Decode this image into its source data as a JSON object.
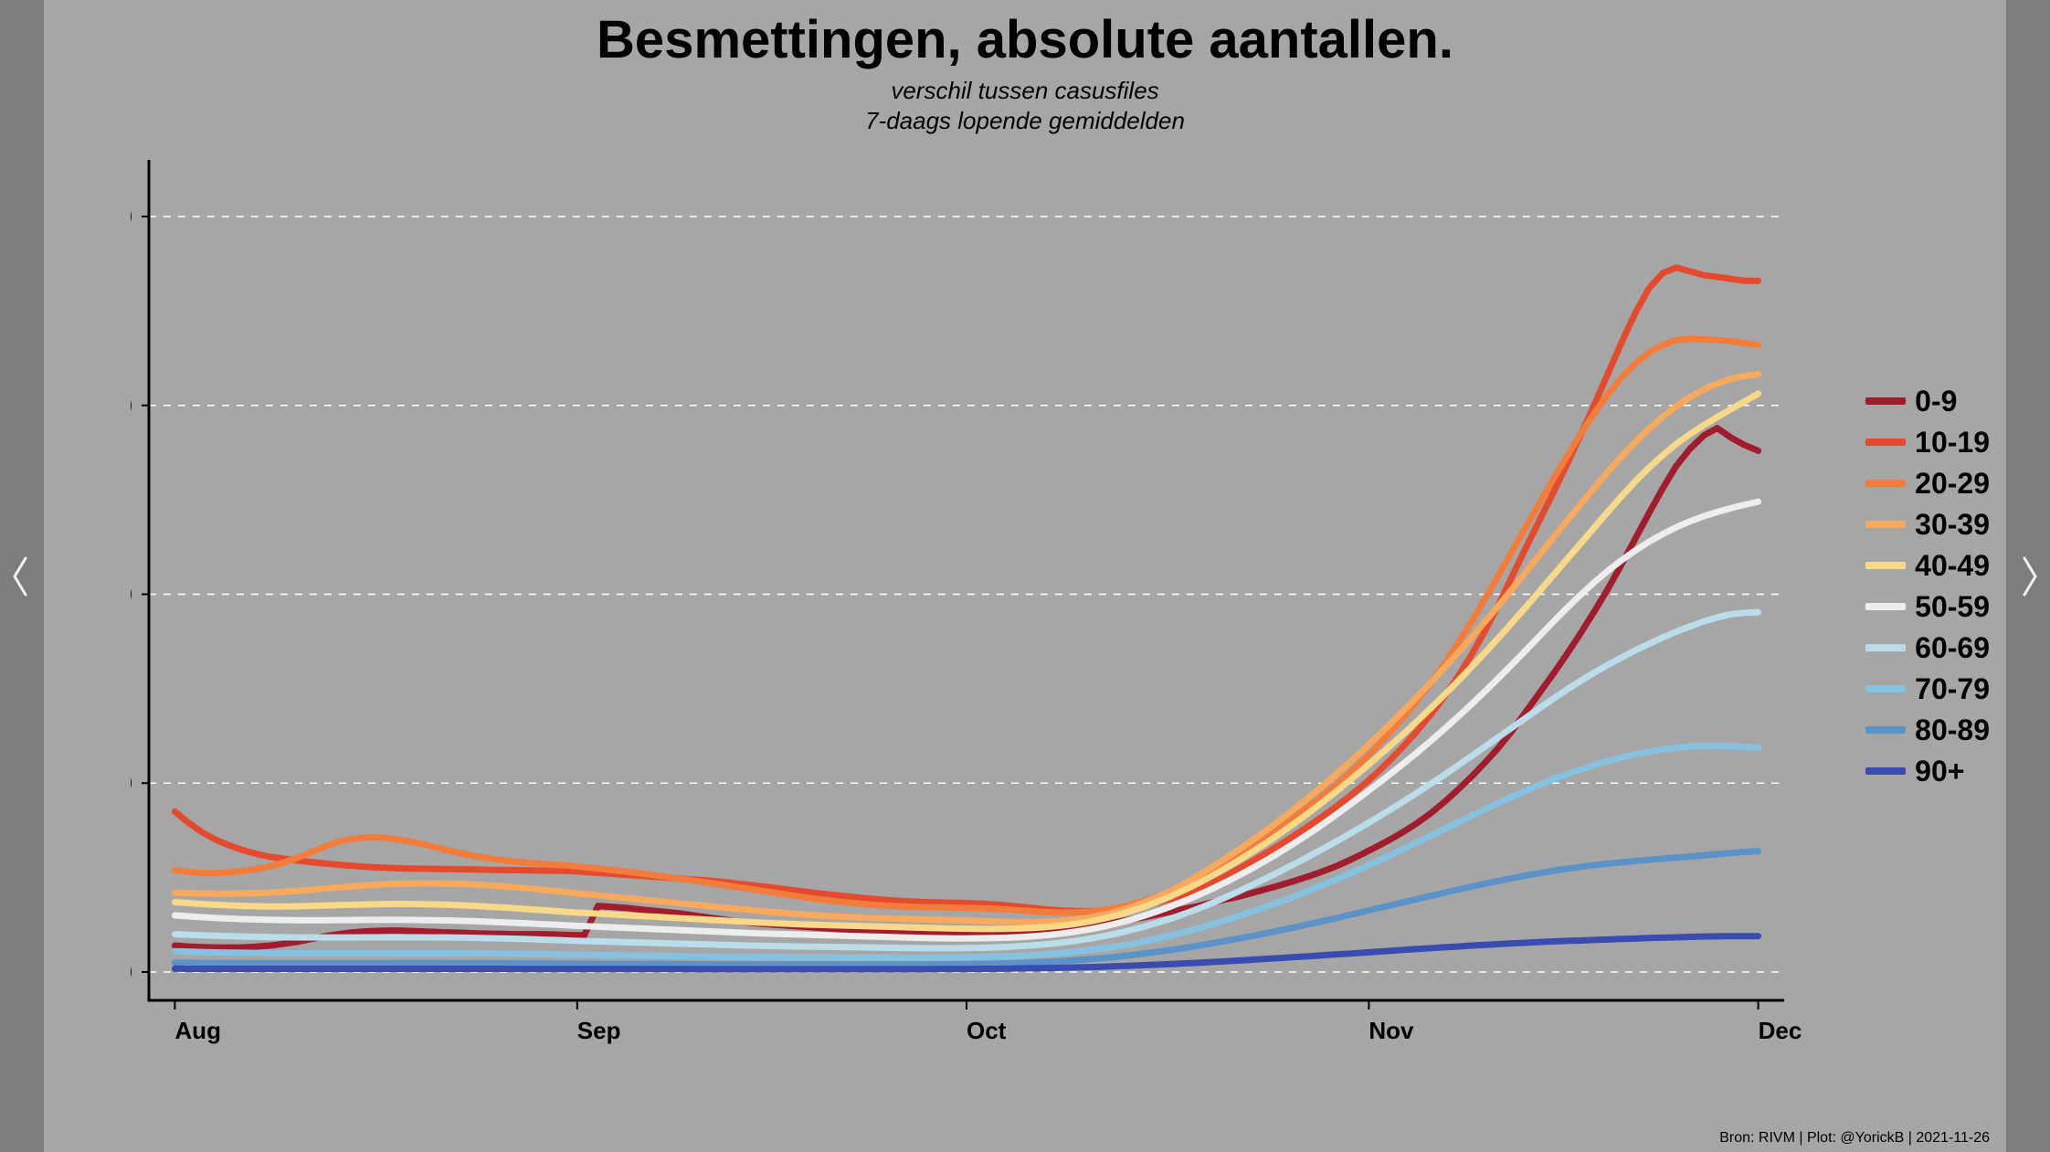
{
  "frame": {
    "outer_bg": "#999999",
    "sidebar_bg": "#7d7d7d",
    "panel_bg": "#a6a6a6",
    "nav_arrow_color": "#f2f2f2"
  },
  "title": "Besmettingen, absolute aantallen.",
  "subtitle_line1": "verschil tussen casusfiles",
  "subtitle_line2": "7-daags lopende gemiddelden",
  "title_fontsize": 58,
  "subtitle_fontsize": 26,
  "credit": "Bron: RIVM | Plot: @YorickB  |  2021-11-26",
  "credit_fontsize": 16,
  "chart": {
    "type": "line",
    "background_color": "#a6a6a6",
    "grid_color": "#ffffff",
    "grid_dash": "8 8",
    "axis_color": "#000000",
    "axis_width": 3,
    "line_width": 7,
    "axis_label_fontsize": 26,
    "axis_label_fontweight": 700,
    "x_ticks": [
      {
        "pos": 0,
        "label": "Aug"
      },
      {
        "pos": 31,
        "label": "Sep"
      },
      {
        "pos": 61,
        "label": "Oct"
      },
      {
        "pos": 92,
        "label": "Nov"
      },
      {
        "pos": 122,
        "label": "Dec"
      }
    ],
    "xlim": [
      -2,
      124
    ],
    "y_ticks": [
      0,
      1000,
      2000,
      3000,
      4000
    ],
    "ylim": [
      -150,
      4300
    ],
    "legend_fontsize": 32,
    "legend_fontweight": 700,
    "series": [
      {
        "label": "0-9",
        "color": "#a11d2e",
        "values": [
          140,
          135,
          132,
          130,
          130,
          130,
          135,
          140,
          150,
          160,
          175,
          190,
          200,
          210,
          215,
          218,
          220,
          218,
          215,
          212,
          210,
          208,
          205,
          203,
          202,
          200,
          200,
          200,
          198,
          196,
          195,
          350,
          345,
          340,
          332,
          325,
          318,
          310,
          300,
          290,
          280,
          270,
          262,
          255,
          250,
          245,
          240,
          235,
          230,
          225,
          222,
          220,
          218,
          216,
          214,
          212,
          210,
          208,
          205,
          203,
          200,
          200,
          205,
          210,
          218,
          226,
          235,
          245,
          255,
          265,
          278,
          290,
          305,
          320,
          335,
          350,
          368,
          385,
          400,
          420,
          440,
          460,
          482,
          505,
          530,
          558,
          590,
          625,
          662,
          700,
          742,
          788,
          840,
          900,
          965,
          1035,
          1110,
          1190,
          1280,
          1380,
          1480,
          1580,
          1685,
          1795,
          1910,
          2030,
          2160,
          2295,
          2430,
          2560,
          2680,
          2770,
          2840,
          2880,
          2830,
          2790,
          2760
        ]
      },
      {
        "label": "10-19",
        "color": "#e44a2d",
        "values": [
          850,
          790,
          740,
          700,
          670,
          645,
          625,
          610,
          600,
          590,
          582,
          575,
          568,
          562,
          557,
          553,
          550,
          548,
          547,
          546,
          545,
          544,
          543,
          541,
          540,
          539,
          538,
          537,
          536,
          535,
          530,
          525,
          520,
          515,
          510,
          505,
          500,
          495,
          490,
          485,
          478,
          470,
          462,
          454,
          445,
          436,
          427,
          418,
          410,
          402,
          395,
          388,
          382,
          377,
          373,
          370,
          368,
          367,
          365,
          362,
          358,
          352,
          345,
          338,
          330,
          325,
          322,
          322,
          326,
          332,
          340,
          352,
          368,
          388,
          412,
          440,
          472,
          508,
          548,
          590,
          632,
          676,
          722,
          770,
          820,
          872,
          927,
          986,
          1050,
          1120,
          1195,
          1275,
          1362,
          1458,
          1564,
          1680,
          1808,
          1948,
          2100,
          2250,
          2395,
          2540,
          2690,
          2845,
          3005,
          3170,
          3335,
          3490,
          3620,
          3700,
          3730,
          3710,
          3690,
          3680,
          3670,
          3660,
          3660
        ]
      },
      {
        "label": "20-29",
        "color": "#f27c3b",
        "values": [
          540,
          530,
          525,
          525,
          528,
          535,
          545,
          560,
          580,
          605,
          635,
          665,
          690,
          705,
          712,
          712,
          706,
          695,
          680,
          662,
          644,
          628,
          614,
          602,
          592,
          584,
          578,
          572,
          567,
          562,
          555,
          548,
          540,
          532,
          523,
          514,
          504,
          494,
          484,
          474,
          463,
          452,
          441,
          430,
          419,
          408,
          397,
          387,
          378,
          370,
          363,
          357,
          352,
          348,
          345,
          343,
          342,
          341,
          340,
          338,
          335,
          331,
          326,
          321,
          317,
          315,
          316,
          320,
          328,
          340,
          356,
          376,
          400,
          428,
          460,
          496,
          536,
          578,
          622,
          668,
          716,
          766,
          818,
          872,
          928,
          987,
          1050,
          1117,
          1189,
          1266,
          1348,
          1436,
          1530,
          1631,
          1740,
          1856,
          1978,
          2104,
          2232,
          2360,
          2486,
          2610,
          2732,
          2850,
          2960,
          3060,
          3148,
          3222,
          3280,
          3320,
          3345,
          3352,
          3350,
          3345,
          3340,
          3330,
          3320
        ]
      },
      {
        "label": "30-39",
        "color": "#f7a95e",
        "values": [
          420,
          418,
          416,
          415,
          415,
          416,
          418,
          421,
          425,
          430,
          436,
          442,
          448,
          454,
          459,
          463,
          466,
          468,
          469,
          469,
          468,
          466,
          463,
          459,
          454,
          448,
          442,
          435,
          428,
          420,
          413,
          406,
          399,
          392,
          385,
          378,
          371,
          364,
          357,
          350,
          343,
          336,
          329,
          322,
          316,
          310,
          305,
          300,
          296,
          292,
          289,
          286,
          284,
          282,
          280,
          278,
          276,
          274,
          272,
          270,
          268,
          266,
          265,
          265,
          267,
          271,
          278,
          288,
          302,
          320,
          342,
          368,
          398,
          432,
          470,
          512,
          556,
          602,
          650,
          700,
          752,
          806,
          862,
          920,
          980,
          1042,
          1106,
          1172,
          1240,
          1310,
          1382,
          1456,
          1532,
          1610,
          1690,
          1772,
          1856,
          1942,
          2030,
          2120,
          2210,
          2300,
          2390,
          2478,
          2564,
          2648,
          2730,
          2806,
          2876,
          2940,
          2996,
          3044,
          3084,
          3116,
          3140,
          3156,
          3165
        ]
      },
      {
        "label": "40-49",
        "color": "#f8d889",
        "values": [
          370,
          365,
          360,
          356,
          353,
          350,
          348,
          347,
          347,
          348,
          350,
          352,
          354,
          356,
          358,
          359,
          360,
          360,
          359,
          358,
          356,
          353,
          350,
          346,
          342,
          337,
          332,
          327,
          322,
          317,
          313,
          309,
          305,
          301,
          297,
          293,
          289,
          285,
          281,
          277,
          273,
          269,
          265,
          261,
          258,
          255,
          252,
          250,
          248,
          246,
          244,
          242,
          240,
          238,
          236,
          234,
          232,
          230,
          229,
          228,
          228,
          229,
          231,
          234,
          239,
          246,
          255,
          267,
          282,
          300,
          321,
          345,
          372,
          402,
          435,
          471,
          510,
          551,
          594,
          639,
          686,
          735,
          786,
          839,
          894,
          951,
          1010,
          1070,
          1132,
          1195,
          1260,
          1327,
          1396,
          1467,
          1540,
          1615,
          1692,
          1771,
          1852,
          1934,
          2018,
          2102,
          2186,
          2270,
          2354,
          2438,
          2520,
          2598,
          2670,
          2736,
          2796,
          2848,
          2895,
          2938,
          2980,
          3021,
          3062
        ]
      },
      {
        "label": "50-59",
        "color": "#ededed",
        "values": [
          300,
          295,
          290,
          286,
          283,
          280,
          278,
          276,
          275,
          274,
          274,
          274,
          275,
          275,
          276,
          276,
          276,
          276,
          275,
          274,
          273,
          271,
          269,
          266,
          263,
          260,
          257,
          253,
          250,
          246,
          243,
          240,
          237,
          234,
          231,
          228,
          225,
          222,
          219,
          216,
          213,
          210,
          207,
          204,
          202,
          200,
          198,
          196,
          194,
          192,
          190,
          188,
          186,
          184,
          182,
          180,
          179,
          178,
          178,
          179,
          180,
          182,
          185,
          190,
          196,
          204,
          214,
          226,
          240,
          257,
          276,
          298,
          322,
          348,
          377,
          408,
          441,
          476,
          513,
          552,
          593,
          636,
          681,
          728,
          777,
          828,
          881,
          935,
          990,
          1046,
          1103,
          1162,
          1223,
          1286,
          1351,
          1418,
          1487,
          1558,
          1631,
          1705,
          1780,
          1855,
          1928,
          1998,
          2064,
          2125,
          2181,
          2232,
          2278,
          2319,
          2355,
          2386,
          2413,
          2436,
          2456,
          2474,
          2490
        ]
      },
      {
        "label": "60-69",
        "color": "#bbddea",
        "values": [
          200,
          197,
          194,
          192,
          190,
          188,
          186,
          185,
          184,
          183,
          183,
          183,
          183,
          183,
          184,
          184,
          184,
          184,
          184,
          183,
          183,
          182,
          181,
          179,
          178,
          176,
          174,
          171,
          169,
          166,
          164,
          162,
          160,
          158,
          156,
          154,
          152,
          150,
          148,
          146,
          144,
          142,
          140,
          139,
          137,
          136,
          135,
          134,
          133,
          132,
          131,
          130,
          129,
          128,
          127,
          126,
          126,
          126,
          127,
          128,
          130,
          133,
          137,
          142,
          148,
          156,
          165,
          176,
          189,
          204,
          221,
          240,
          261,
          284,
          309,
          336,
          365,
          396,
          429,
          463,
          498,
          534,
          571,
          609,
          648,
          688,
          729,
          771,
          814,
          858,
          903,
          949,
          996,
          1044,
          1093,
          1143,
          1194,
          1245,
          1296,
          1347,
          1398,
          1448,
          1496,
          1542,
          1586,
          1627,
          1666,
          1703,
          1738,
          1771,
          1802,
          1830,
          1856,
          1878,
          1894,
          1902,
          1905
        ]
      },
      {
        "label": "70-79",
        "color": "#86c2e0",
        "values": [
          110,
          108,
          106,
          104,
          103,
          102,
          101,
          100,
          99,
          99,
          99,
          99,
          99,
          99,
          99,
          100,
          100,
          100,
          100,
          100,
          99,
          99,
          98,
          98,
          97,
          96,
          95,
          94,
          93,
          92,
          91,
          90,
          89,
          88,
          87,
          86,
          85,
          84,
          83,
          82,
          81,
          80,
          80,
          79,
          79,
          78,
          78,
          78,
          78,
          77,
          77,
          77,
          77,
          76,
          76,
          76,
          76,
          77,
          78,
          79,
          81,
          83,
          86,
          90,
          95,
          101,
          108,
          116,
          125,
          136,
          148,
          162,
          177,
          194,
          212,
          232,
          253,
          275,
          298,
          322,
          347,
          373,
          400,
          428,
          457,
          487,
          518,
          550,
          583,
          617,
          652,
          687,
          722,
          757,
          792,
          827,
          862,
          896,
          929,
          961,
          992,
          1021,
          1048,
          1073,
          1096,
          1117,
          1136,
          1153,
          1167,
          1179,
          1188,
          1194,
          1197,
          1197,
          1195,
          1192,
          1190
        ]
      },
      {
        "label": "80-89",
        "color": "#5b92c8",
        "values": [
          50,
          49,
          48,
          48,
          47,
          47,
          46,
          46,
          46,
          46,
          46,
          46,
          46,
          46,
          46,
          46,
          47,
          47,
          47,
          47,
          47,
          46,
          46,
          46,
          46,
          45,
          45,
          45,
          44,
          44,
          44,
          43,
          43,
          43,
          42,
          42,
          42,
          41,
          41,
          41,
          40,
          40,
          40,
          40,
          40,
          40,
          40,
          40,
          40,
          40,
          40,
          40,
          40,
          40,
          40,
          40,
          41,
          41,
          42,
          43,
          44,
          46,
          48,
          51,
          54,
          58,
          63,
          68,
          74,
          81,
          89,
          98,
          107,
          117,
          128,
          140,
          152,
          165,
          178,
          192,
          206,
          221,
          236,
          252,
          268,
          284,
          301,
          318,
          335,
          352,
          369,
          386,
          403,
          420,
          436,
          452,
          468,
          483,
          497,
          511,
          524,
          536,
          547,
          557,
          566,
          574,
          581,
          588,
          594,
          600,
          606,
          612,
          618,
          624,
          630,
          636,
          640
        ]
      },
      {
        "label": "90+",
        "color": "#3a4cb0",
        "values": [
          18,
          17,
          17,
          17,
          17,
          17,
          17,
          17,
          17,
          17,
          17,
          17,
          17,
          17,
          17,
          17,
          17,
          17,
          17,
          17,
          17,
          17,
          17,
          17,
          17,
          16,
          16,
          16,
          16,
          16,
          16,
          16,
          16,
          16,
          16,
          16,
          16,
          16,
          15,
          15,
          15,
          15,
          15,
          15,
          15,
          15,
          15,
          15,
          15,
          15,
          15,
          15,
          15,
          15,
          15,
          15,
          16,
          16,
          16,
          17,
          17,
          18,
          19,
          20,
          21,
          23,
          24,
          26,
          28,
          31,
          33,
          36,
          39,
          42,
          46,
          49,
          53,
          57,
          61,
          65,
          70,
          74,
          79,
          83,
          88,
          93,
          97,
          102,
          107,
          112,
          117,
          122,
          126,
          131,
          135,
          140,
          144,
          148,
          152,
          155,
          159,
          162,
          165,
          167,
          170,
          172,
          175,
          177,
          180,
          182,
          184,
          186,
          188,
          189,
          190,
          190,
          190
        ]
      }
    ]
  }
}
